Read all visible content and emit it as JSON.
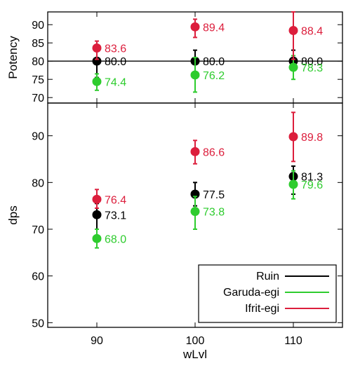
{
  "chart_data": [
    {
      "type": "scatter",
      "panel": "top",
      "title": "",
      "xlabel": "",
      "ylabel": "Potency",
      "x": [
        90,
        100,
        110
      ],
      "xlim": [
        85,
        115
      ],
      "ylim": [
        68.5,
        93.5
      ],
      "yticks": [
        70,
        75,
        80,
        85,
        90
      ],
      "xticks": [
        90,
        100,
        110
      ],
      "reference_line": 80,
      "grid": false,
      "series": [
        {
          "name": "Ruin",
          "color": "#000000",
          "values": [
            80.0,
            80.0,
            80.0
          ],
          "err_low": [
            75.5,
            76.5,
            77.5
          ],
          "err_high": [
            84.5,
            83.0,
            83.0
          ],
          "labels": [
            "80.0",
            "80.0",
            "80.0"
          ]
        },
        {
          "name": "Garuda-egi",
          "color": "#2ecc2e",
          "values": [
            74.4,
            76.2,
            78.3
          ],
          "err_low": [
            72.0,
            71.5,
            75.0
          ],
          "err_high": [
            76.5,
            81.0,
            81.5
          ],
          "labels": [
            "74.4",
            "76.2",
            "78.3"
          ]
        },
        {
          "name": "Ifrit-egi",
          "color": "#dc1e3c",
          "values": [
            83.6,
            89.4,
            88.4
          ],
          "err_low": [
            80.5,
            86.5,
            80.5
          ],
          "err_high": [
            85.5,
            91.5,
            93.5
          ],
          "labels": [
            "83.6",
            "89.4",
            "88.4"
          ]
        }
      ]
    },
    {
      "type": "scatter",
      "panel": "bottom",
      "title": "",
      "xlabel": "wLvl",
      "ylabel": "dps",
      "x": [
        90,
        100,
        110
      ],
      "xlim": [
        85,
        115
      ],
      "ylim": [
        49,
        97
      ],
      "yticks": [
        50,
        60,
        70,
        80,
        90
      ],
      "xticks": [
        90,
        100,
        110
      ],
      "grid": false,
      "legend_position": "bottom-right",
      "series": [
        {
          "name": "Ruin",
          "color": "#000000",
          "values": [
            73.1,
            77.5,
            81.3
          ],
          "err_low": [
            68.5,
            75.0,
            77.5
          ],
          "err_high": [
            75.5,
            80.0,
            83.5
          ],
          "labels": [
            "73.1",
            "77.5",
            "81.3"
          ]
        },
        {
          "name": "Garuda-egi",
          "color": "#2ecc2e",
          "values": [
            68.0,
            73.8,
            79.6
          ],
          "err_low": [
            66.0,
            70.0,
            76.5
          ],
          "err_high": [
            70.0,
            77.0,
            82.5
          ],
          "labels": [
            "68.0",
            "73.8",
            "79.6"
          ]
        },
        {
          "name": "Ifrit-egi",
          "color": "#dc1e3c",
          "values": [
            76.4,
            86.6,
            89.8
          ],
          "err_low": [
            74.5,
            84.0,
            84.5
          ],
          "err_high": [
            78.5,
            89.0,
            95.0
          ],
          "labels": [
            "76.4",
            "86.6",
            "89.8"
          ]
        }
      ]
    }
  ],
  "legend": {
    "items": [
      {
        "name": "Ruin",
        "color": "#000000"
      },
      {
        "name": "Garuda-egi",
        "color": "#2ecc2e"
      },
      {
        "name": "Ifrit-egi",
        "color": "#dc1e3c"
      }
    ]
  }
}
